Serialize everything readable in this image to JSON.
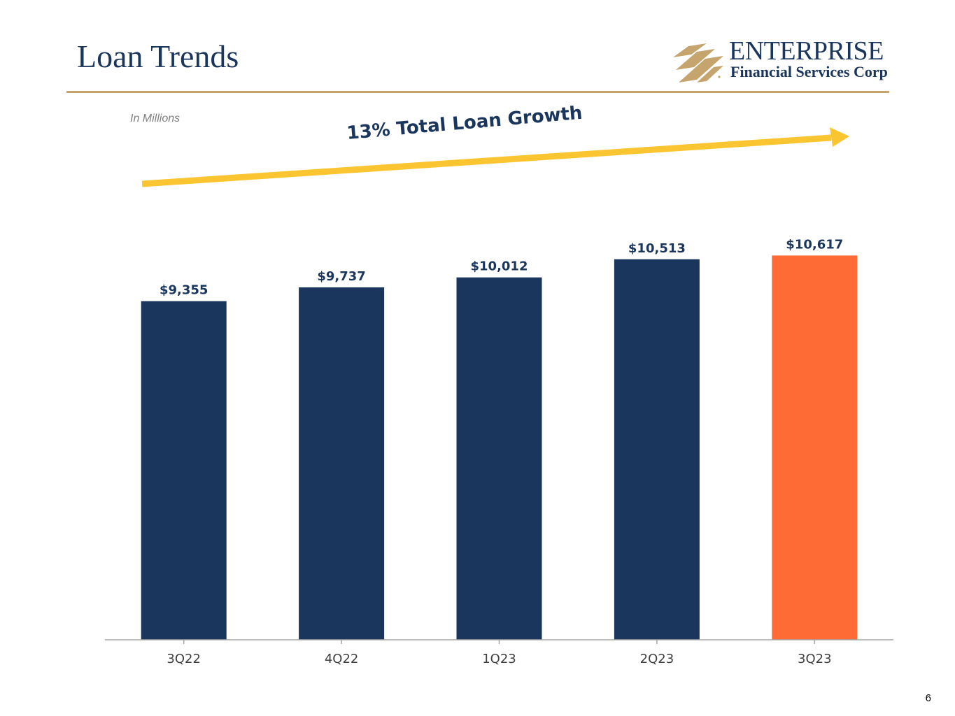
{
  "slide": {
    "title": "Loan Trends",
    "unit_note": "In Millions",
    "growth_annotation": "13% Total Loan Growth",
    "page_number": "6"
  },
  "logo": {
    "name": "ENTERPRISE",
    "subtitle": "Financial Services Corp",
    "mark_icon": "enterprise-stripes-icon"
  },
  "colors": {
    "navy": "#1b365d",
    "highlight": "#ff6b35",
    "gold": "#c5a46d",
    "arrow": "#fbc531"
  },
  "chart_data": {
    "type": "bar",
    "categories": [
      "3Q22",
      "4Q22",
      "1Q23",
      "2Q23",
      "3Q23"
    ],
    "values": [
      9355,
      9737,
      10012,
      10513,
      10617
    ],
    "data_labels": [
      "$9,355",
      "$9,737",
      "$10,012",
      "$10,513",
      "$10,617"
    ],
    "highlight_index": 4,
    "ylim": [
      0,
      17000
    ],
    "grid": false,
    "legend": "none"
  }
}
